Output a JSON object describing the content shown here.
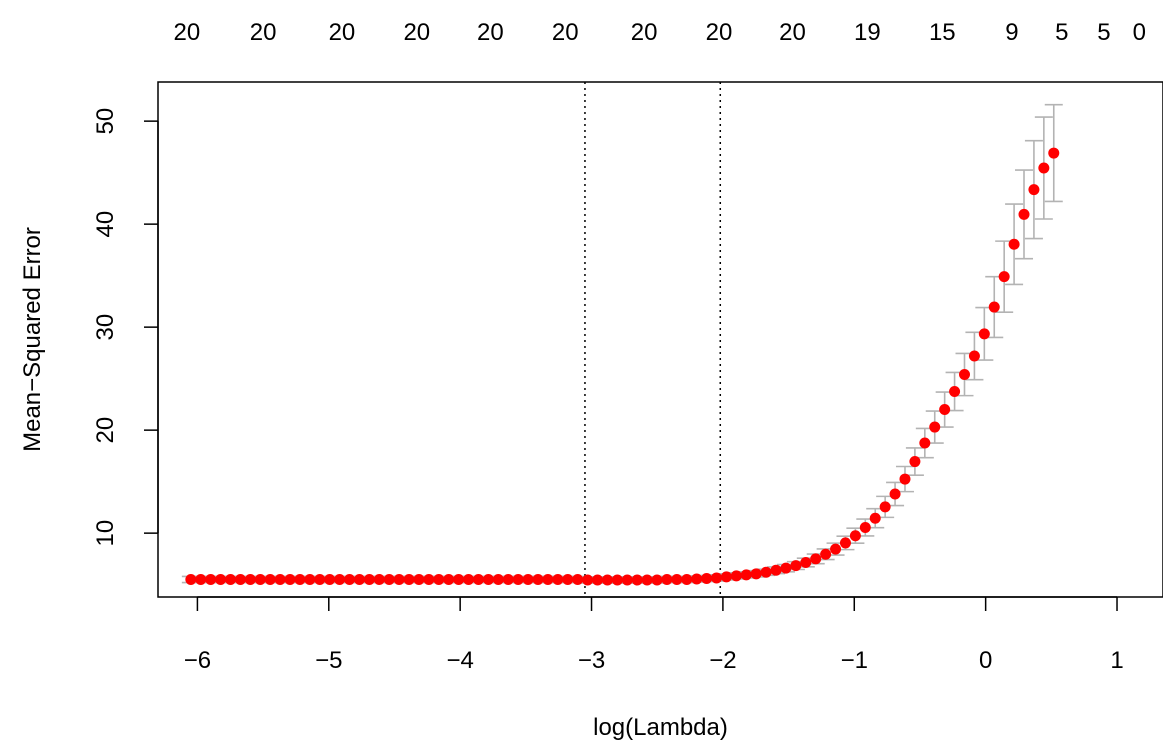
{
  "chart_data": {
    "type": "scatter",
    "xlabel": "log(Lambda)",
    "ylabel": "Mean−Squared Error",
    "xlim": [
      -6.3,
      1.35
    ],
    "ylim": [
      3.8,
      53.8
    ],
    "x_ticks": [
      -6,
      -5,
      -4,
      -3,
      -2,
      -1,
      0,
      1
    ],
    "x_tick_labels": [
      "−6",
      "−5",
      "−4",
      "−3",
      "−2",
      "−1",
      "0",
      "1"
    ],
    "y_ticks": [
      10,
      20,
      30,
      40,
      50
    ],
    "y_tick_labels": [
      "10",
      "20",
      "30",
      "40",
      "50"
    ],
    "vlines": [
      -3.05,
      -2.02
    ],
    "top_axis": {
      "ticks": [
        -6.08,
        -5.5,
        -4.9,
        -4.33,
        -3.77,
        -3.2,
        -2.6,
        -2.03,
        -1.47,
        -0.9,
        -0.33,
        0.2,
        0.58,
        0.9,
        1.17
      ],
      "labels": [
        "20",
        "20",
        "20",
        "20",
        "20",
        "20",
        "20",
        "20",
        "20",
        "19",
        "15",
        "9",
        "5",
        "5",
        "0"
      ]
    },
    "points": {
      "start": -6.05,
      "step": 0.0755,
      "mse": [
        5.5,
        5.5,
        5.5,
        5.5,
        5.5,
        5.5,
        5.5,
        5.5,
        5.5,
        5.5,
        5.5,
        5.5,
        5.5,
        5.5,
        5.5,
        5.5,
        5.5,
        5.5,
        5.5,
        5.5,
        5.5,
        5.5,
        5.5,
        5.5,
        5.5,
        5.5,
        5.5,
        5.5,
        5.5,
        5.5,
        5.5,
        5.5,
        5.5,
        5.5,
        5.5,
        5.5,
        5.5,
        5.5,
        5.5,
        5.5,
        5.45,
        5.45,
        5.45,
        5.45,
        5.45,
        5.45,
        5.45,
        5.45,
        5.5,
        5.5,
        5.5,
        5.55,
        5.6,
        5.65,
        5.75,
        5.85,
        5.95,
        6.05,
        6.2,
        6.4,
        6.6,
        6.85,
        7.15,
        7.5,
        7.95,
        8.45,
        9.05,
        9.75,
        10.55,
        11.45,
        12.55,
        13.8,
        15.25,
        16.95,
        18.75,
        20.3,
        22.0,
        23.75,
        25.4,
        27.2,
        29.35,
        31.95,
        34.9,
        38.05,
        40.95,
        43.35,
        45.45,
        46.9
      ],
      "se": [
        0.3,
        0.3,
        0.3,
        0.3,
        0.3,
        0.3,
        0.3,
        0.3,
        0.3,
        0.3,
        0.3,
        0.3,
        0.3,
        0.3,
        0.3,
        0.3,
        0.3,
        0.3,
        0.3,
        0.3,
        0.3,
        0.3,
        0.3,
        0.3,
        0.3,
        0.3,
        0.3,
        0.3,
        0.3,
        0.3,
        0.3,
        0.3,
        0.3,
        0.3,
        0.3,
        0.3,
        0.3,
        0.3,
        0.3,
        0.3,
        0.3,
        0.3,
        0.3,
        0.3,
        0.3,
        0.3,
        0.3,
        0.3,
        0.3,
        0.3,
        0.3,
        0.3,
        0.3,
        0.3,
        0.3,
        0.3,
        0.3,
        0.3,
        0.3,
        0.32,
        0.35,
        0.38,
        0.42,
        0.47,
        0.52,
        0.58,
        0.65,
        0.73,
        0.82,
        0.92,
        1.02,
        1.12,
        1.22,
        1.32,
        1.42,
        1.55,
        1.7,
        1.85,
        2.05,
        2.3,
        2.55,
        2.95,
        3.45,
        3.9,
        4.3,
        4.75,
        4.95,
        4.7
      ]
    },
    "colors": {
      "point": "#ff0000",
      "errorbar": "#b3b3b3",
      "vline": "#000000"
    },
    "grid": false,
    "legend": "none"
  }
}
